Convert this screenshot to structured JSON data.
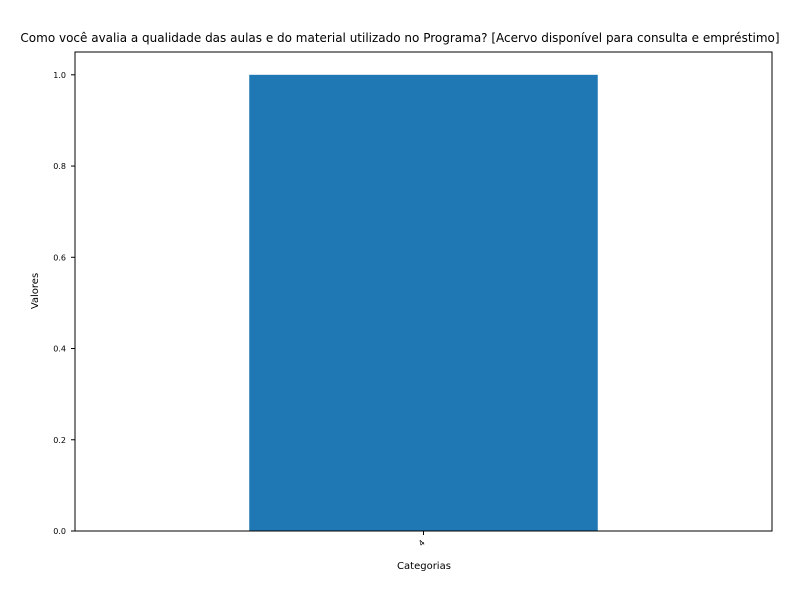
{
  "chart_data": {
    "type": "bar",
    "title": "Como você avalia a qualidade das aulas e do material utilizado no Programa?  [Acervo disponível para consulta e empréstimo]",
    "xlabel": "Categorias",
    "ylabel": "Valores",
    "categories": [
      "4"
    ],
    "values": [
      1.0
    ],
    "ylim": [
      0,
      1.05
    ],
    "yticks": [
      "0.0",
      "0.2",
      "0.4",
      "0.6",
      "0.8",
      "1.0"
    ],
    "grid": false,
    "bar_color": "#1f77b4"
  }
}
